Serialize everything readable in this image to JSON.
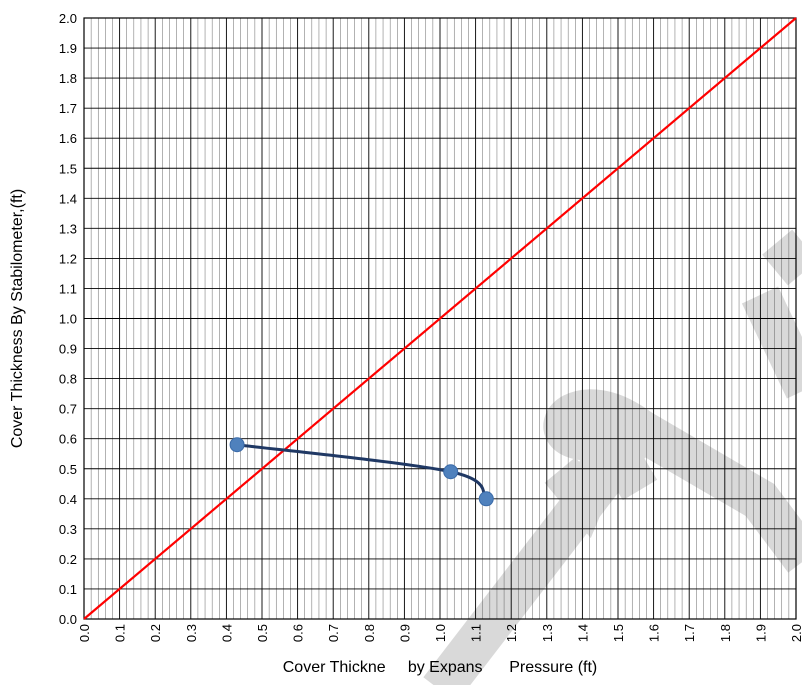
{
  "chart_data": {
    "type": "scatter",
    "title": "",
    "xlabel": "Cover Thickne     by Expans      Pressure (ft)",
    "ylabel": "Cover Thickness By Stabilometer,(ft)",
    "xlim": [
      0.0,
      2.0
    ],
    "ylim": [
      0.0,
      2.0
    ],
    "x_ticks": [
      "0.0",
      "0.1",
      "0.2",
      "0.3",
      "0.4",
      "0.5",
      "0.6",
      "0.7",
      "0.8",
      "0.9",
      "1.0",
      "1.1",
      "1.2",
      "1.3",
      "1.4",
      "1.5",
      "1.6",
      "1.7",
      "1.8",
      "1.9",
      "2.0"
    ],
    "y_ticks": [
      "0.0",
      "0.1",
      "0.2",
      "0.3",
      "0.4",
      "0.5",
      "0.6",
      "0.7",
      "0.8",
      "0.9",
      "1.0",
      "1.1",
      "1.2",
      "1.3",
      "1.4",
      "1.5",
      "1.6",
      "1.7",
      "1.8",
      "1.9",
      "2.0"
    ],
    "grid": true,
    "series": [
      {
        "points": [
          {
            "x": 0.43,
            "y": 0.58
          },
          {
            "x": 1.03,
            "y": 0.49
          },
          {
            "x": 1.13,
            "y": 0.4
          }
        ],
        "color": "#1f3864",
        "marker_color": "#4f81bd"
      },
      {
        "points": [
          {
            "x": 0.0,
            "y": 0.0
          },
          {
            "x": 2.0,
            "y": 2.0
          }
        ],
        "color": "#ff0000"
      }
    ],
    "watermark_color": "#d9d9d9"
  }
}
